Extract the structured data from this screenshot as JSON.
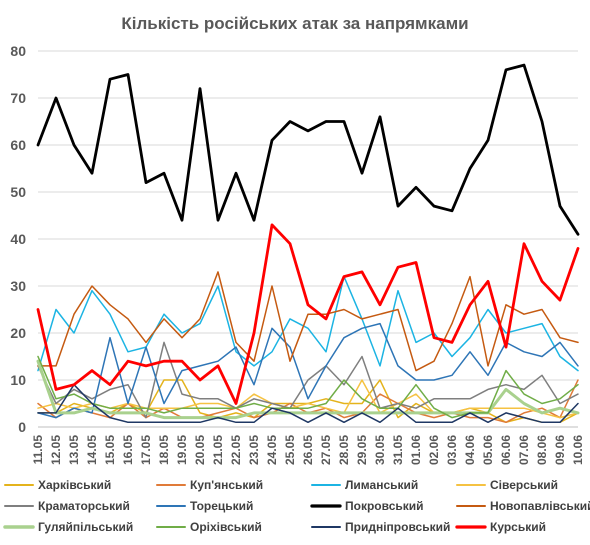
{
  "chart_data": {
    "type": "line",
    "title": "Кількість російських атак за напрямками",
    "xlabel": "",
    "ylabel": "",
    "ylim": [
      0,
      80
    ],
    "yticks": [
      0,
      10,
      20,
      30,
      40,
      50,
      60,
      70,
      80
    ],
    "grid": "horizontal",
    "legend_position": "bottom",
    "categories": [
      "11.05",
      "12.05",
      "13.05",
      "14.05",
      "15.05",
      "16.05",
      "17.05",
      "18.05",
      "19.05",
      "20.05",
      "21.05",
      "22.05",
      "23.05",
      "24.05",
      "25.05",
      "26.05",
      "27.05",
      "28.05",
      "29.05",
      "30.05",
      "31.05",
      "01.06",
      "02.06",
      "03.06",
      "04.06",
      "05.06",
      "06.06",
      "07.06",
      "08.06",
      "09.06",
      "10.06"
    ],
    "series": [
      {
        "name": "Харківський",
        "color": "#e4b31c",
        "width": 1.5,
        "values": [
          3,
          3,
          5,
          4,
          3,
          5,
          3,
          10,
          10,
          3,
          2,
          3,
          2,
          5,
          5,
          5,
          6,
          5,
          5,
          10,
          2,
          5,
          3,
          3,
          4,
          3,
          1,
          2,
          1,
          1,
          3
        ]
      },
      {
        "name": "Куп'янський",
        "color": "#e07b39",
        "width": 1.5,
        "values": [
          5,
          2,
          4,
          3,
          2,
          5,
          2,
          4,
          2,
          2,
          3,
          4,
          2,
          3,
          5,
          3,
          4,
          2,
          3,
          7,
          5,
          3,
          2,
          3,
          2,
          2,
          1,
          3,
          4,
          2,
          10
        ]
      },
      {
        "name": "Лиманський",
        "color": "#1cb4e3",
        "width": 1.5,
        "values": [
          12,
          25,
          20,
          29,
          24,
          16,
          17,
          24,
          20,
          22,
          30,
          16,
          13,
          16,
          23,
          21,
          16,
          32,
          23,
          13,
          29,
          18,
          20,
          15,
          19,
          25,
          20,
          21,
          22,
          15,
          12
        ]
      },
      {
        "name": "Сіверський",
        "color": "#f5c242",
        "width": 1.5,
        "values": [
          4,
          5,
          4,
          5,
          4,
          5,
          4,
          4,
          4,
          5,
          5,
          4,
          7,
          5,
          4,
          5,
          4,
          3,
          10,
          3,
          5,
          7,
          3,
          3,
          4,
          4,
          4,
          4,
          3,
          2,
          3
        ]
      },
      {
        "name": "Краматорський",
        "color": "#7f7f7f",
        "width": 1.5,
        "values": [
          13,
          5,
          8,
          6,
          8,
          9,
          2,
          18,
          7,
          6,
          6,
          4,
          6,
          5,
          4,
          10,
          13,
          9,
          15,
          4,
          5,
          4,
          6,
          6,
          6,
          8,
          9,
          8,
          11,
          5,
          7
        ]
      },
      {
        "name": "Торецький",
        "color": "#2e75b6",
        "width": 1.5,
        "values": [
          3,
          2,
          4,
          3,
          19,
          5,
          17,
          5,
          12,
          13,
          14,
          17,
          9,
          21,
          17,
          6,
          13,
          19,
          21,
          22,
          13,
          10,
          10,
          11,
          16,
          11,
          18,
          16,
          15,
          18,
          13
        ]
      },
      {
        "name": "Покровський",
        "color": "#000000",
        "width": 2.8,
        "values": [
          60,
          70,
          60,
          54,
          74,
          75,
          52,
          54,
          44,
          72,
          44,
          54,
          44,
          61,
          65,
          63,
          65,
          65,
          54,
          66,
          47,
          51,
          47,
          46,
          55,
          61,
          76,
          77,
          65,
          47,
          41
        ]
      },
      {
        "name": "Новопавлівський",
        "color": "#c55a11",
        "width": 1.5,
        "values": [
          13,
          13,
          24,
          30,
          26,
          23,
          18,
          23,
          19,
          23,
          33,
          18,
          14,
          30,
          14,
          24,
          24,
          25,
          23,
          24,
          25,
          12,
          14,
          22,
          32,
          13,
          26,
          24,
          25,
          19,
          18
        ]
      },
      {
        "name": "Гуляйпільський",
        "color": "#a9d18e",
        "width": 3,
        "values": [
          14,
          3,
          3,
          4,
          3,
          3,
          3,
          2,
          2,
          2,
          2,
          2,
          3,
          3,
          3,
          3,
          3,
          3,
          3,
          3,
          3,
          3,
          3,
          3,
          3,
          3,
          8,
          5,
          3,
          4,
          3
        ]
      },
      {
        "name": "Оріхівський",
        "color": "#70ad47",
        "width": 1.5,
        "values": [
          15,
          6,
          7,
          5,
          4,
          4,
          4,
          3,
          4,
          4,
          4,
          4,
          5,
          4,
          4,
          4,
          5,
          10,
          6,
          4,
          4,
          9,
          4,
          2,
          3,
          3,
          12,
          7,
          5,
          6,
          9
        ]
      },
      {
        "name": "Придніпровський",
        "color": "#1f3864",
        "width": 1.5,
        "values": [
          3,
          3,
          9,
          5,
          2,
          1,
          1,
          1,
          1,
          1,
          2,
          1,
          1,
          4,
          3,
          1,
          3,
          1,
          3,
          1,
          4,
          1,
          1,
          1,
          3,
          1,
          3,
          2,
          1,
          1,
          5
        ]
      },
      {
        "name": "Курський",
        "color": "#ff0000",
        "width": 2.8,
        "values": [
          25,
          8,
          9,
          12,
          9,
          14,
          13,
          14,
          14,
          10,
          13,
          5,
          20,
          43,
          39,
          26,
          23,
          32,
          33,
          26,
          34,
          35,
          19,
          18,
          26,
          31,
          17,
          39,
          31,
          27,
          38
        ]
      }
    ]
  }
}
